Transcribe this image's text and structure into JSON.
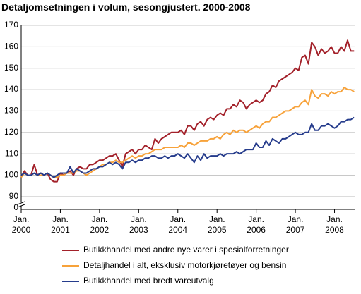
{
  "chart_data": {
    "type": "line",
    "title": "Detaljomsetningen i volum, sesongjustert. 2000-2008",
    "categories": [
      "Jan. 2000",
      null,
      null,
      null,
      null,
      null,
      null,
      null,
      null,
      null,
      null,
      null,
      "Jan. 2001",
      null,
      null,
      null,
      null,
      null,
      null,
      null,
      null,
      null,
      null,
      null,
      "Jan. 2002",
      null,
      null,
      null,
      null,
      null,
      null,
      null,
      null,
      null,
      null,
      null,
      "Jan. 2003",
      null,
      null,
      null,
      null,
      null,
      null,
      null,
      null,
      null,
      null,
      null,
      "Jan. 2004",
      null,
      null,
      null,
      null,
      null,
      null,
      null,
      null,
      null,
      null,
      null,
      "Jan. 2005",
      null,
      null,
      null,
      null,
      null,
      null,
      null,
      null,
      null,
      null,
      null,
      "Jan. 2006",
      null,
      null,
      null,
      null,
      null,
      null,
      null,
      null,
      null,
      null,
      null,
      "Jan. 2007",
      null,
      null,
      null,
      null,
      null,
      null,
      null,
      null,
      null,
      null,
      null,
      "Jan. 2008",
      null,
      null,
      null,
      null,
      null,
      null
    ],
    "series": [
      {
        "name": "Butikkhandel med andre nye varer i spesialforretninger",
        "color": "#a3212a",
        "values": [
          99,
          102,
          100,
          100,
          105,
          100,
          101,
          100,
          101,
          98,
          97,
          97,
          101,
          100,
          101,
          102,
          100,
          103,
          104,
          103,
          103,
          105,
          105,
          106,
          107,
          107,
          108,
          109,
          109,
          110,
          107,
          104,
          110,
          111,
          112,
          110,
          112,
          112,
          114,
          113,
          112,
          117,
          115,
          117,
          118,
          119,
          120,
          120,
          120,
          121,
          119,
          123,
          123,
          121,
          124,
          125,
          123,
          126,
          127,
          126,
          128,
          129,
          128,
          131,
          131,
          133,
          132,
          135,
          134,
          131,
          133,
          134,
          135,
          134,
          135,
          138,
          139,
          142,
          141,
          144,
          145,
          146,
          147,
          148,
          150,
          149,
          155,
          156,
          152,
          162,
          160,
          156,
          159,
          157,
          158,
          160,
          157,
          157,
          160,
          158,
          163,
          158,
          158
        ]
      },
      {
        "name": "Detaljhandel i alt, eksklusiv motorkjøretøyer og bensin",
        "color": "#f7a23a",
        "values": [
          99,
          101,
          100,
          100,
          101,
          100,
          100,
          100,
          101,
          100,
          99,
          99,
          100,
          100,
          101,
          101,
          101,
          102,
          102,
          101,
          100,
          101,
          102,
          103,
          104,
          105,
          105,
          106,
          106,
          107,
          106,
          106,
          107,
          108,
          109,
          108,
          109,
          109,
          110,
          110,
          111,
          112,
          112,
          112,
          113,
          113,
          113,
          113,
          113,
          114,
          113,
          115,
          115,
          114,
          115,
          116,
          116,
          116,
          117,
          117,
          118,
          117,
          119,
          120,
          119,
          121,
          120,
          121,
          121,
          120,
          121,
          122,
          123,
          122,
          124,
          125,
          125,
          127,
          127,
          128,
          129,
          130,
          130,
          131,
          132,
          132,
          134,
          135,
          133,
          140,
          137,
          136,
          138,
          138,
          137,
          139,
          138,
          139,
          139,
          141,
          140,
          140,
          139
        ]
      },
      {
        "name": "Butikkhandel med bredt vareutvalg",
        "color": "#263c8c",
        "values": [
          100,
          101,
          100,
          100,
          101,
          100,
          101,
          100,
          101,
          100,
          99,
          100,
          101,
          101,
          101,
          104,
          101,
          103,
          102,
          101,
          101,
          102,
          103,
          103,
          104,
          104,
          105,
          106,
          105,
          106,
          105,
          103,
          106,
          106,
          107,
          106,
          107,
          107,
          108,
          108,
          109,
          109,
          108,
          108,
          109,
          108,
          109,
          109,
          110,
          109,
          108,
          110,
          108,
          106,
          109,
          107,
          110,
          108,
          109,
          109,
          109,
          110,
          109,
          110,
          110,
          110,
          111,
          110,
          111,
          112,
          112,
          112,
          115,
          113,
          113,
          116,
          114,
          117,
          116,
          115,
          117,
          117,
          118,
          119,
          120,
          119,
          119,
          120,
          120,
          124,
          121,
          121,
          123,
          123,
          124,
          123,
          122,
          123,
          125,
          125,
          126,
          126,
          127
        ]
      }
    ],
    "ylim": [
      86,
      170
    ],
    "yticks": [
      90,
      100,
      110,
      120,
      130,
      140,
      150,
      160,
      170
    ],
    "y_break_label": 0,
    "grid": true
  }
}
